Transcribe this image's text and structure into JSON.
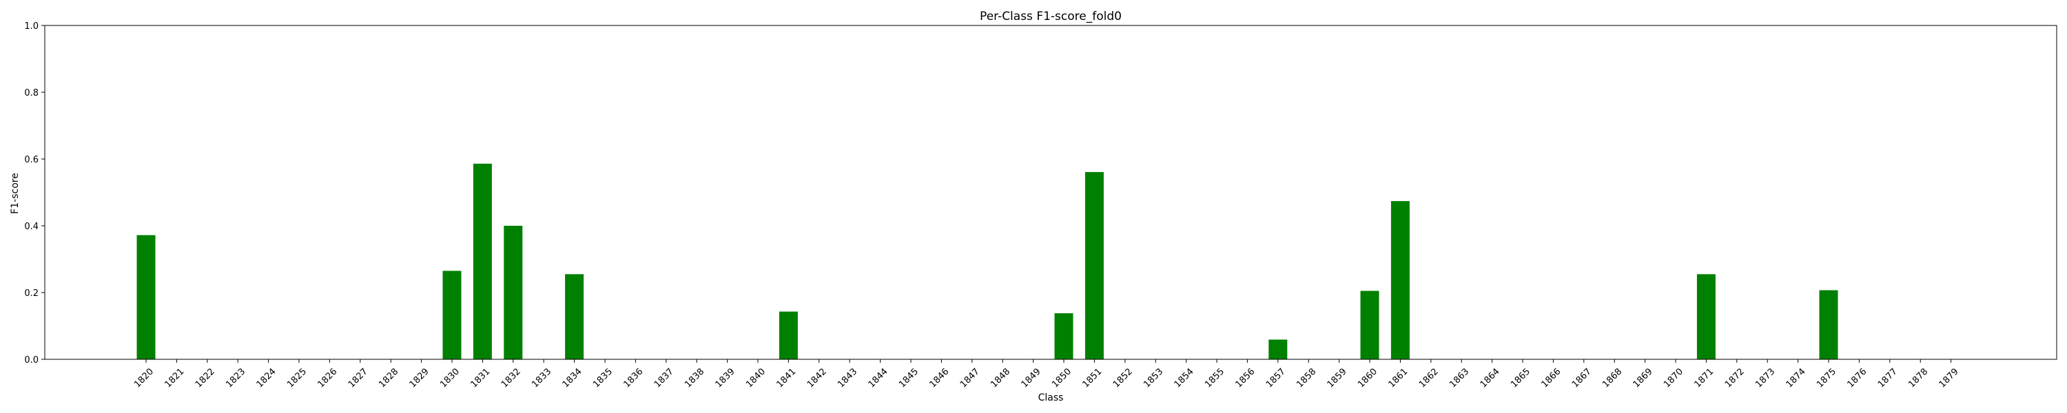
{
  "chart_data": {
    "type": "bar",
    "title": "Per-Class F1-score_fold0",
    "xlabel": "Class",
    "ylabel": "F1-score",
    "ylim": [
      0,
      1
    ],
    "yticks": [
      "0.0",
      "0.2",
      "0.4",
      "0.6",
      "0.8",
      "1.0"
    ],
    "ytick_values": [
      0,
      0.2,
      0.4,
      0.6,
      0.8,
      1.0
    ],
    "grid": false,
    "bar_color": "#008000",
    "categories": [
      "1820",
      "1821",
      "1822",
      "1823",
      "1824",
      "1825",
      "1826",
      "1827",
      "1828",
      "1829",
      "1830",
      "1831",
      "1832",
      "1833",
      "1834",
      "1835",
      "1836",
      "1837",
      "1838",
      "1839",
      "1840",
      "1841",
      "1842",
      "1843",
      "1844",
      "1845",
      "1846",
      "1847",
      "1848",
      "1849",
      "1850",
      "1851",
      "1852",
      "1853",
      "1854",
      "1855",
      "1856",
      "1857",
      "1858",
      "1859",
      "1860",
      "1861",
      "1862",
      "1863",
      "1864",
      "1865",
      "1866",
      "1867",
      "1868",
      "1869",
      "1870",
      "1871",
      "1872",
      "1873",
      "1874",
      "1875",
      "1876",
      "1877",
      "1878",
      "1879"
    ],
    "values": [
      0.372,
      0,
      0,
      0,
      0,
      0,
      0,
      0,
      0,
      0,
      0.265,
      0.586,
      0.4,
      0,
      0.255,
      0,
      0,
      0,
      0,
      0,
      0,
      0.143,
      0,
      0,
      0,
      0,
      0,
      0,
      0,
      0,
      0.138,
      0.561,
      0,
      0,
      0,
      0,
      0,
      0.059,
      0,
      0,
      0.205,
      0.474,
      0,
      0,
      0,
      0,
      0,
      0,
      0,
      0,
      0,
      0.255,
      0,
      0,
      0,
      0.207,
      0,
      0,
      0,
      0
    ]
  }
}
